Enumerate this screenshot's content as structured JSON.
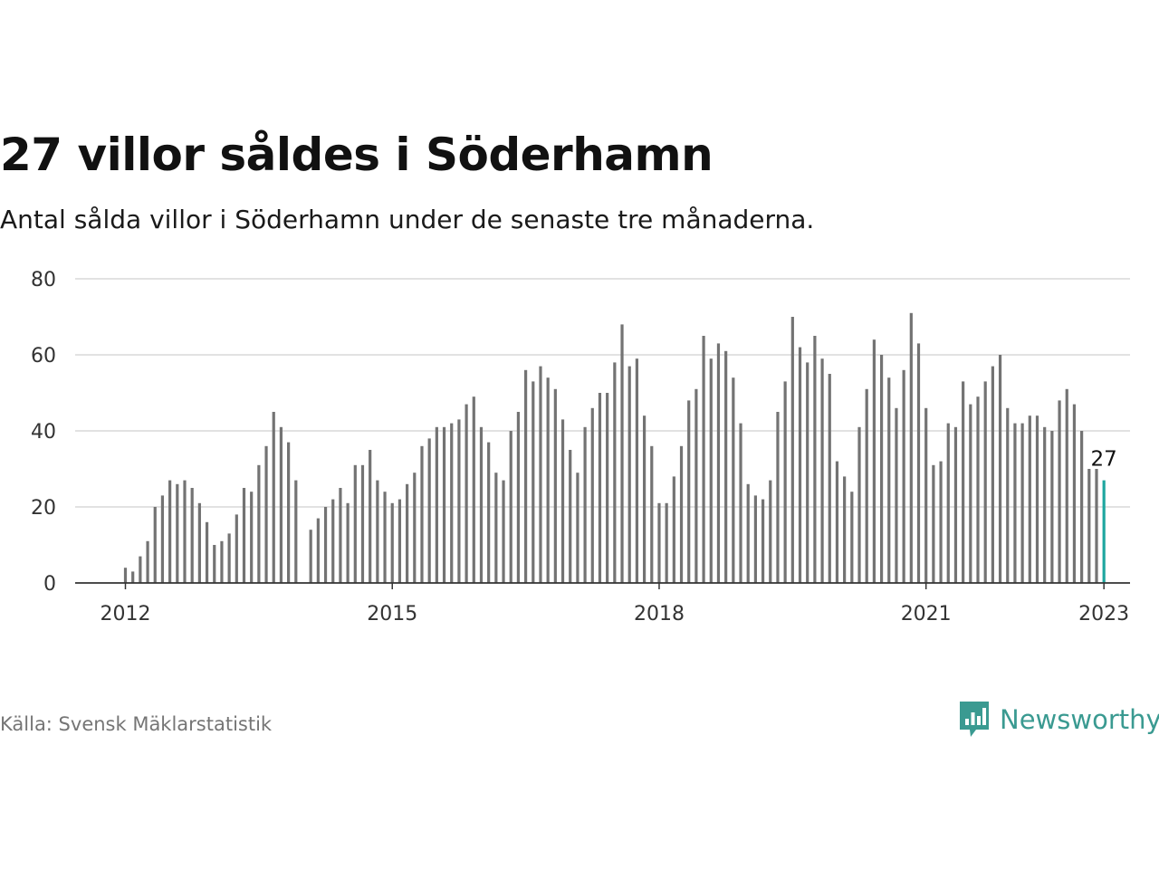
{
  "header": {
    "title": "27 villor såldes i Söderhamn",
    "subtitle": "Antal sålda villor i Söderhamn under de senaste tre månaderna."
  },
  "footer": {
    "source": "Källa: Svensk Mäklarstatistik",
    "brand": "Newsworthy"
  },
  "colors": {
    "bar": "#737373",
    "highlight": "#1fa7a0",
    "grid": "#d9d9d9",
    "axis": "#333333",
    "brand": "#3a9a91"
  },
  "chart_data": {
    "type": "bar",
    "title": "27 villor såldes i Söderhamn",
    "subtitle": "Antal sålda villor i Söderhamn under de senaste tre månaderna.",
    "xlabel": "",
    "ylabel": "",
    "ylim": [
      0,
      80
    ],
    "yticks": [
      0,
      20,
      40,
      60,
      80
    ],
    "x_start": "2012-01",
    "xticks": [
      "2012",
      "2015",
      "2018",
      "2021",
      "2023"
    ],
    "grid": true,
    "highlight": {
      "index": 132,
      "label": "27"
    },
    "values": [
      4,
      3,
      7,
      11,
      20,
      23,
      27,
      26,
      27,
      25,
      21,
      16,
      10,
      11,
      13,
      18,
      25,
      24,
      31,
      36,
      45,
      41,
      37,
      27,
      null,
      14,
      17,
      20,
      22,
      25,
      21,
      31,
      31,
      35,
      27,
      24,
      21,
      22,
      26,
      29,
      36,
      38,
      41,
      41,
      42,
      43,
      47,
      49,
      41,
      37,
      29,
      27,
      40,
      45,
      56,
      53,
      57,
      54,
      51,
      43,
      35,
      29,
      41,
      46,
      50,
      50,
      58,
      68,
      57,
      59,
      44,
      36,
      21,
      21,
      28,
      36,
      48,
      51,
      65,
      59,
      63,
      61,
      54,
      42,
      26,
      23,
      22,
      27,
      45,
      53,
      70,
      62,
      58,
      65,
      59,
      55,
      32,
      28,
      24,
      41,
      51,
      64,
      60,
      54,
      46,
      56,
      71,
      63,
      46,
      31,
      32,
      42,
      41,
      53,
      47,
      49,
      53,
      57,
      60,
      46,
      42,
      42,
      44,
      44,
      41,
      40,
      48,
      51,
      47,
      40,
      30,
      30,
      27
    ]
  }
}
